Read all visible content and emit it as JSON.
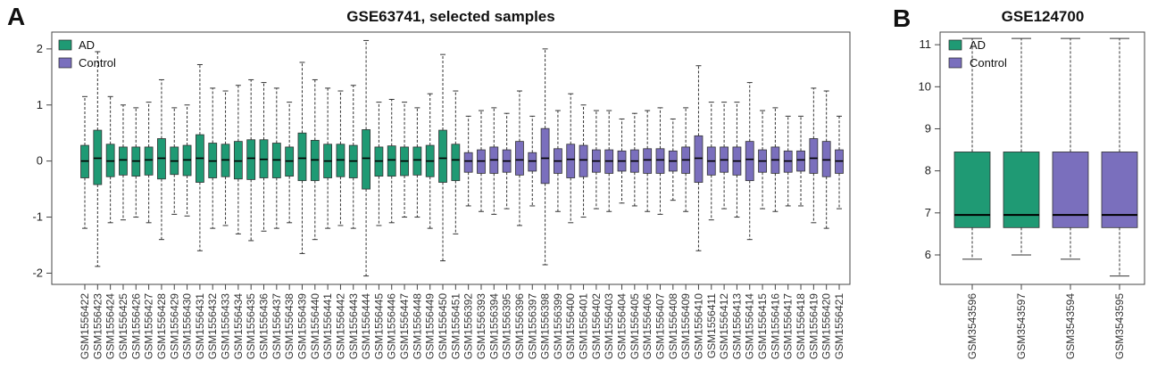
{
  "panels": {
    "a_letter": "A",
    "b_letter": "B"
  },
  "colors": {
    "ad": "#1f9a74",
    "control": "#7a6fbd",
    "whisker": "#333333",
    "frame": "#444444"
  },
  "chart_data": [
    {
      "type": "box",
      "title": "GSE63741, selected samples",
      "xlabel": "",
      "ylabel": "",
      "ylim": [
        -2.2,
        2.3
      ],
      "yticks": [
        -2,
        -1,
        0,
        1,
        2
      ],
      "legend": {
        "placement": "top-left",
        "entries": [
          "AD",
          "Control"
        ]
      },
      "series": [
        {
          "name": "AD",
          "samples": [
            "GSM1556422",
            "GSM1556423",
            "GSM1556424",
            "GSM1556425",
            "GSM1556426",
            "GSM1556427",
            "GSM1556428",
            "GSM1556429",
            "GSM1556430",
            "GSM1556431",
            "GSM1556432",
            "GSM1556433",
            "GSM1556434",
            "GSM1556435",
            "GSM1556436",
            "GSM1556437",
            "GSM1556438",
            "GSM1556439",
            "GSM1556440",
            "GSM1556441",
            "GSM1556442",
            "GSM1556443",
            "GSM1556444",
            "GSM1556445",
            "GSM1556446",
            "GSM1556447",
            "GSM1556448",
            "GSM1556449",
            "GSM1556450",
            "GSM1556451"
          ],
          "q1": [
            -0.3,
            -0.42,
            -0.28,
            -0.25,
            -0.27,
            -0.25,
            -0.32,
            -0.24,
            -0.26,
            -0.38,
            -0.3,
            -0.28,
            -0.32,
            -0.33,
            -0.3,
            -0.3,
            -0.27,
            -0.35,
            -0.35,
            -0.3,
            -0.28,
            -0.3,
            -0.5,
            -0.27,
            -0.27,
            -0.26,
            -0.25,
            -0.28,
            -0.38,
            -0.35
          ],
          "median": [
            0.0,
            0.05,
            0.0,
            0.02,
            0.0,
            0.02,
            0.05,
            0.0,
            0.02,
            0.05,
            0.0,
            0.02,
            0.0,
            0.05,
            0.03,
            0.02,
            0.0,
            0.05,
            0.02,
            0.0,
            0.02,
            0.0,
            0.05,
            0.0,
            0.02,
            0.0,
            0.02,
            0.0,
            0.05,
            0.02
          ],
          "q3": [
            0.28,
            0.55,
            0.3,
            0.25,
            0.25,
            0.25,
            0.4,
            0.25,
            0.28,
            0.47,
            0.32,
            0.3,
            0.35,
            0.38,
            0.38,
            0.32,
            0.25,
            0.5,
            0.37,
            0.3,
            0.3,
            0.28,
            0.56,
            0.25,
            0.27,
            0.25,
            0.25,
            0.28,
            0.55,
            0.3
          ],
          "min": [
            -1.2,
            -1.88,
            -1.1,
            -1.05,
            -1.0,
            -1.1,
            -1.4,
            -0.95,
            -0.98,
            -1.6,
            -1.2,
            -1.15,
            -1.3,
            -1.42,
            -1.25,
            -1.2,
            -1.1,
            -1.65,
            -1.4,
            -1.2,
            -1.15,
            -1.2,
            -2.05,
            -1.15,
            -1.1,
            -1.0,
            -1.0,
            -1.2,
            -1.78,
            -1.3
          ],
          "max": [
            1.15,
            1.95,
            1.15,
            1.0,
            0.95,
            1.05,
            1.45,
            0.95,
            1.0,
            1.72,
            1.3,
            1.25,
            1.35,
            1.45,
            1.4,
            1.3,
            1.05,
            1.76,
            1.45,
            1.3,
            1.25,
            1.35,
            2.15,
            1.05,
            1.1,
            1.05,
            0.95,
            1.2,
            1.9,
            1.25
          ]
        },
        {
          "name": "Control",
          "samples": [
            "GSM1556392",
            "GSM1556393",
            "GSM1556394",
            "GSM1556395",
            "GSM1556396",
            "GSM1556397",
            "GSM1556398",
            "GSM1556399",
            "GSM1556400",
            "GSM1556401",
            "GSM1556402",
            "GSM1556403",
            "GSM1556404",
            "GSM1556405",
            "GSM1556406",
            "GSM1556407",
            "GSM1556408",
            "GSM1556409",
            "GSM1556410",
            "GSM1556411",
            "GSM1556412",
            "GSM1556413",
            "GSM1556414",
            "GSM1556415",
            "GSM1556416",
            "GSM1556417",
            "GSM1556418",
            "GSM1556419",
            "GSM1556420",
            "GSM1556421"
          ],
          "q1": [
            -0.2,
            -0.22,
            -0.22,
            -0.2,
            -0.25,
            -0.18,
            -0.4,
            -0.22,
            -0.3,
            -0.28,
            -0.2,
            -0.22,
            -0.18,
            -0.2,
            -0.22,
            -0.22,
            -0.18,
            -0.22,
            -0.38,
            -0.25,
            -0.2,
            -0.25,
            -0.35,
            -0.2,
            -0.22,
            -0.2,
            -0.18,
            -0.22,
            -0.28,
            -0.22
          ],
          "median": [
            0.0,
            0.0,
            0.02,
            0.0,
            0.02,
            0.0,
            0.05,
            0.0,
            0.03,
            0.02,
            0.0,
            0.0,
            0.0,
            0.0,
            0.02,
            0.02,
            0.0,
            0.02,
            0.05,
            0.0,
            0.02,
            0.0,
            0.03,
            0.0,
            0.02,
            0.0,
            0.02,
            0.05,
            0.02,
            0.0
          ],
          "q3": [
            0.15,
            0.2,
            0.25,
            0.2,
            0.35,
            0.15,
            0.58,
            0.22,
            0.3,
            0.28,
            0.2,
            0.2,
            0.18,
            0.2,
            0.22,
            0.22,
            0.18,
            0.25,
            0.45,
            0.25,
            0.25,
            0.25,
            0.35,
            0.2,
            0.25,
            0.18,
            0.18,
            0.4,
            0.35,
            0.2
          ],
          "min": [
            -0.8,
            -0.9,
            -0.95,
            -0.85,
            -1.15,
            -0.8,
            -1.85,
            -0.9,
            -1.1,
            -1.0,
            -0.85,
            -0.9,
            -0.75,
            -0.8,
            -0.9,
            -0.95,
            -0.7,
            -0.9,
            -1.6,
            -1.05,
            -0.85,
            -1.0,
            -1.4,
            -0.85,
            -0.9,
            -0.8,
            -0.8,
            -1.1,
            -1.2,
            -0.85
          ],
          "max": [
            0.8,
            0.9,
            0.95,
            0.85,
            1.25,
            0.8,
            2.0,
            0.9,
            1.2,
            1.0,
            0.9,
            0.9,
            0.75,
            0.85,
            0.9,
            0.95,
            0.75,
            0.95,
            1.7,
            1.05,
            1.05,
            1.05,
            1.4,
            0.9,
            0.95,
            0.8,
            0.8,
            1.3,
            1.25,
            0.8
          ]
        }
      ]
    },
    {
      "type": "box",
      "title": "GSE124700",
      "xlabel": "",
      "ylabel": "",
      "ylim": [
        5.3,
        11.3
      ],
      "yticks": [
        6,
        7,
        8,
        9,
        10,
        11
      ],
      "legend": {
        "placement": "top-left",
        "entries": [
          "AD",
          "Control"
        ]
      },
      "series": [
        {
          "name": "AD",
          "samples": [
            "GSM3543596",
            "GSM3543597"
          ],
          "q1": [
            6.65,
            6.65
          ],
          "median": [
            6.95,
            6.95
          ],
          "q3": [
            8.45,
            8.45
          ],
          "min": [
            5.9,
            6.0
          ],
          "max": [
            11.15,
            11.15
          ]
        },
        {
          "name": "Control",
          "samples": [
            "GSM3543594",
            "GSM3543595"
          ],
          "q1": [
            6.65,
            6.65
          ],
          "median": [
            6.95,
            6.95
          ],
          "q3": [
            8.45,
            8.45
          ],
          "min": [
            5.9,
            5.5
          ],
          "max": [
            11.15,
            11.15
          ]
        }
      ]
    }
  ]
}
